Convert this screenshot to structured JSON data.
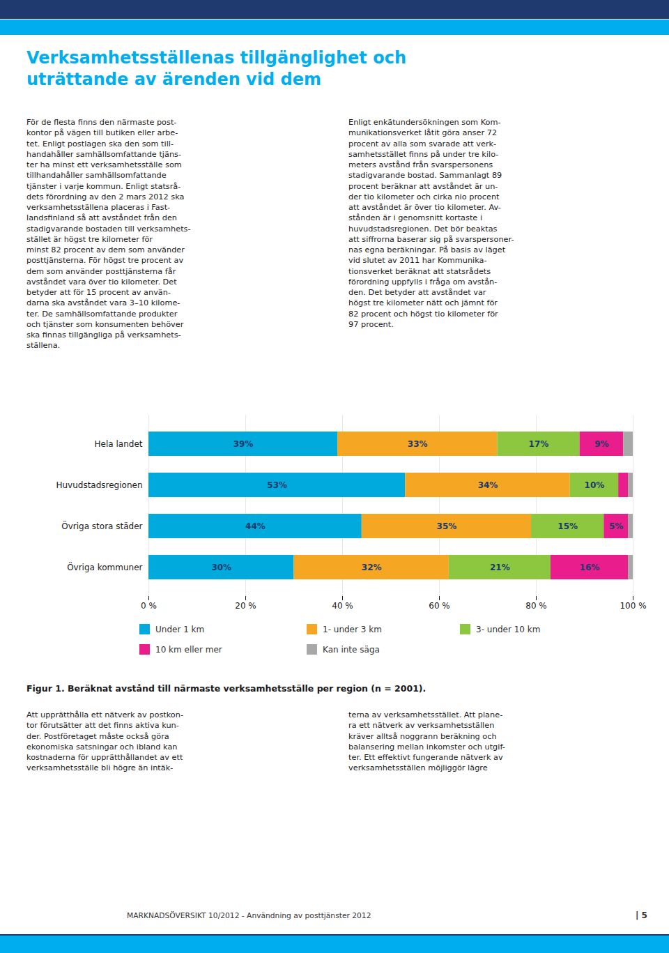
{
  "chart_data": {
    "type": "bar",
    "orientation": "horizontal",
    "stacked": true,
    "data_labels": true,
    "grid": true,
    "legend": "bottom",
    "title": "Verksamhetsställenas tillgänglighet och\nuträttande av ärenden vid dem",
    "caption": "Figur 1. Beräknat avstånd till närmaste verksamhetsställe per region (n = 2001).",
    "categories": [
      "Hela landet",
      "Huvudstadsregionen",
      "Övriga stora städer",
      "Övriga kommuner"
    ],
    "series": [
      {
        "name": "Under 1 km",
        "color": "#00AADC",
        "values": [
          39,
          53,
          44,
          30
        ],
        "value_labels": [
          "39%",
          "53%",
          "44%",
          "30%"
        ]
      },
      {
        "name": "1- under 3 km",
        "color": "#F5A623",
        "values": [
          33,
          34,
          35,
          32
        ],
        "value_labels": [
          "33%",
          "34%",
          "35%",
          "32%"
        ]
      },
      {
        "name": "3- under 10 km",
        "color": "#8DC63F",
        "values": [
          17,
          10,
          15,
          21
        ],
        "value_labels": [
          "17%",
          "10%",
          "15%",
          "21%"
        ]
      },
      {
        "name": "10 km eller mer",
        "color": "#E91E8C",
        "values": [
          9,
          2,
          5,
          16
        ],
        "value_labels": [
          "9%",
          null,
          "5%",
          "16%"
        ]
      },
      {
        "name": "Kan inte säga",
        "color": "#A8A8A8",
        "values": [
          2,
          1,
          1,
          1
        ],
        "value_labels": [
          null,
          null,
          null,
          null
        ]
      }
    ],
    "xlim": [
      0,
      100
    ],
    "xticks": [
      {
        "value": 0,
        "label": "0 %"
      },
      {
        "value": 20,
        "label": "20 %"
      },
      {
        "value": 40,
        "label": "40 %"
      },
      {
        "value": 60,
        "label": "60 %"
      },
      {
        "value": 80,
        "label": "80 %"
      },
      {
        "value": 100,
        "label": "100 %"
      }
    ],
    "annotations": [
      "För de flesta finns den närmaste post-\nkontor på vägen till butiken eller arbe-\ntet. Enligt postlagen ska den som till-\nhandahåller samhällsomfattande tjäns-\nter ha minst ett verksamhetsställe som\ntillhandahåller samhällsomfattande\ntjänster i varje kommun. Enligt statsrå-\ndets förordning av den 2 mars 2012 ska\nverksamhetsställena placeras i Fast-\nlandsfinland så att avståndet från den\nstadigvarande bostaden till verksamhets-\nstället är högst tre kilometer för\nminst 82 procent av dem som använder\nposttjänsterna. För högst tre procent av\ndem som använder posttjänsterna får\navståndet vara över tio kilometer. Det\nbetyder att för 15 procent av använ-\ndarna ska avståndet vara 3–10 kilome-\nter. De samhällsomfattande produkter\noch tjänster som konsumenten behöver\nska finnas tillgängliga på verksamhets-\nställena.",
      "Enligt enkätundersökningen som Kom-\nmunikationsverket låtit göra anser 72\nprocent av alla som svarade att verk-\nsamhetsstället finns på under tre kilo-\nmeters avstånd från svarspersonens\nstadigvarande bostad. Sammanlagt 89\nprocent beräknar att avståndet är un-\nder tio kilometer och cirka nio procent\natt avståndet är över tio kilometer. Av-\nstånden är i genomsnitt kortaste i\nhuvudstadsregionen. Det bör beaktas\natt siffrorna baserar sig på svarspersoner-\nnas egna beräkningar. På basis av läget\nvid slutet av 2011 har Kommunika-\ntionsverket beräknat att statsrådets\nförordning uppfylls i fråga om avstån-\nden. Det betyder att avståndet var\nhögst tre kilometer nätt och jämnt för\n82 procent och högst tio kilometer för\n97 procent.",
      "Att upprätthålla ett nätverk av postkon-\ntor förutsätter att det finns aktiva kun-\nder. Postföretaget måste också göra\nekonomiska satsningar och ibland kan\nkostnaderna för upprätthållandet av ett\nverksamhetsställe bli högre än intäk-",
      "terna av verksamhetsstället. Att plane-\nra ett nätverk av verksamhetsställen\nkräver alltså noggrann beräkning och\nbalansering mellan inkomster och utgif-\nter. Ett effektivt fungerande nätverk av\nverksamhetsställen möjliggör lägre",
      "MARKNADSÖVERSIKT 10/2012 - Användning av posttjänster 2012",
      "| 5"
    ]
  }
}
